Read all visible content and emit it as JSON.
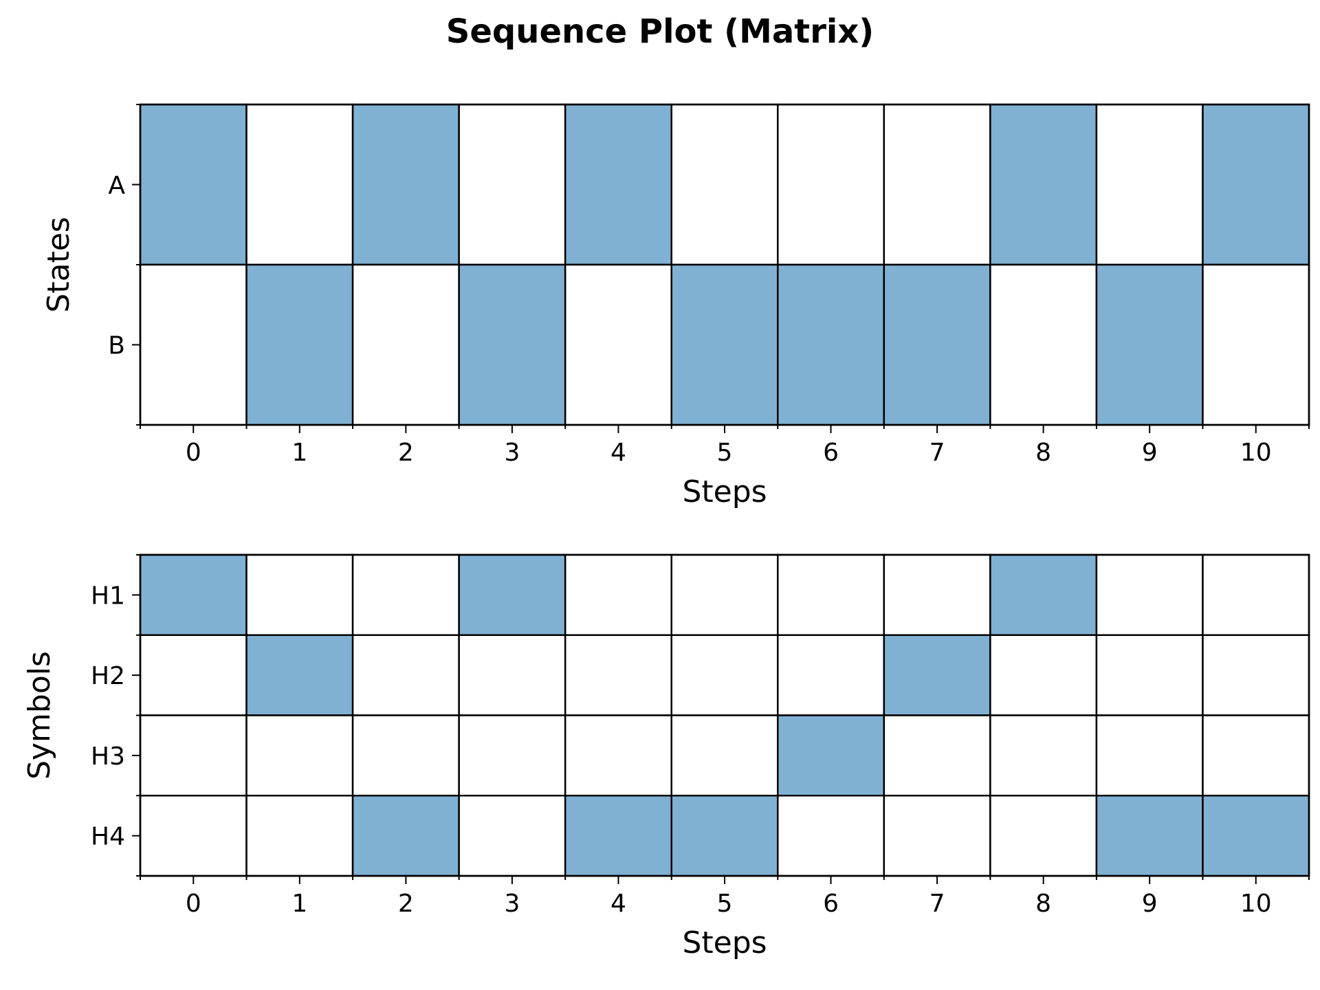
{
  "figure": {
    "title": "Sequence Plot (Matrix)"
  },
  "chart_data": [
    {
      "type": "heatmap",
      "xlabel": "Steps",
      "ylabel": "States",
      "x": [
        0,
        1,
        2,
        3,
        4,
        5,
        6,
        7,
        8,
        9,
        10
      ],
      "rows": [
        "A",
        "B"
      ],
      "sequence": [
        "A",
        "B",
        "A",
        "B",
        "A",
        "B",
        "B",
        "B",
        "A",
        "B",
        "A"
      ],
      "fill_color": "#80b1d3",
      "empty_color": "#ffffff",
      "grid": true
    },
    {
      "type": "heatmap",
      "xlabel": "Steps",
      "ylabel": "Symbols",
      "x": [
        0,
        1,
        2,
        3,
        4,
        5,
        6,
        7,
        8,
        9,
        10
      ],
      "rows": [
        "H1",
        "H2",
        "H3",
        "H4"
      ],
      "sequence": [
        "H1",
        "H2",
        "H4",
        "H1",
        "H4",
        "H4",
        "H3",
        "H2",
        "H1",
        "H4",
        "H4"
      ],
      "fill_color": "#80b1d3",
      "empty_color": "#ffffff",
      "grid": true
    }
  ]
}
